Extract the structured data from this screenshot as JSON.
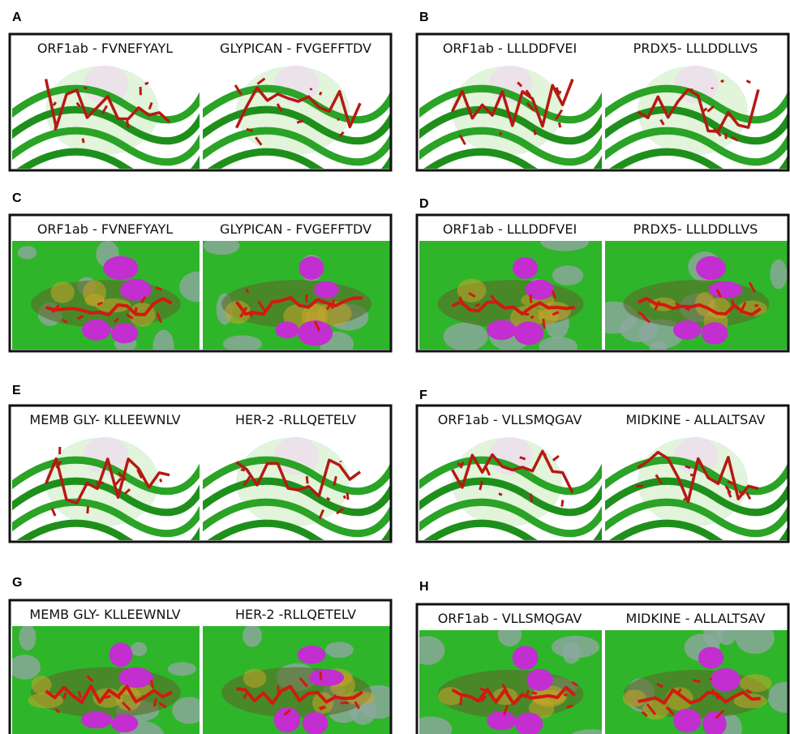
{
  "panels": [
    {
      "letter": "A",
      "labels": [
        "ORF1ab - FVNEFYAYL",
        "GLYPICAN - FVGEFFTDV"
      ]
    },
    {
      "letter": "B",
      "labels": [
        "ORF1ab - LLLDDFVEI",
        "PRDX5- LLLDDLLVS"
      ]
    },
    {
      "letter": "C",
      "labels": [
        "ORF1ab - FVNEFYAYL",
        "GLYPICAN - FVGEFFTDV"
      ]
    },
    {
      "letter": "D",
      "labels": [
        "ORF1ab - LLLDDFVEI",
        "PRDX5- LLLDDLLVS"
      ]
    },
    {
      "letter": "E",
      "labels": [
        "MEMB GLY- KLLEEWNLV",
        "HER-2 -RLLQETELV"
      ]
    },
    {
      "letter": "F",
      "labels": [
        "ORF1ab - VLLSMQGAV",
        "MIDKINE - ALLALTSAV"
      ]
    },
    {
      "letter": "G",
      "labels": [
        "MEMB GLY- KLLEEWNLV",
        "HER-2 -RLLQETELV"
      ]
    },
    {
      "letter": "H",
      "labels": [
        "ORF1ab - VLLSMQGAV",
        "MIDKINE - ALLALTSAV"
      ]
    }
  ]
}
